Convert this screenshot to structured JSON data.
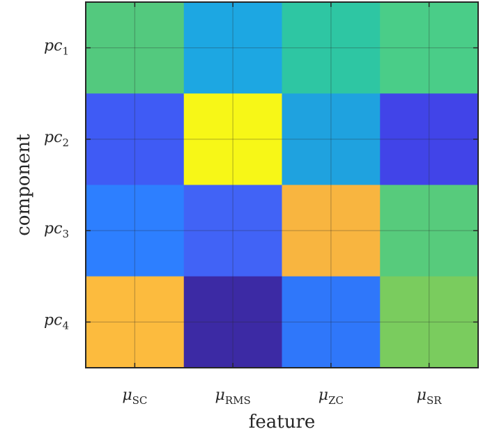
{
  "chart_data": {
    "type": "heatmap",
    "title": "",
    "xlabel": "feature",
    "ylabel": "component",
    "x_ticks": [
      {
        "base": "μ",
        "sub": "SC"
      },
      {
        "base": "μ",
        "sub": "RMS"
      },
      {
        "base": "μ",
        "sub": "ZC"
      },
      {
        "base": "μ",
        "sub": "SR"
      }
    ],
    "y_ticks": [
      {
        "base": "pc",
        "sub": "1"
      },
      {
        "base": "pc",
        "sub": "2"
      },
      {
        "base": "pc",
        "sub": "3"
      },
      {
        "base": "pc",
        "sub": "4"
      }
    ],
    "colormap": "parula",
    "grid": true,
    "colorbar": false,
    "cells": [
      [
        0.72,
        0.4,
        0.62,
        0.7
      ],
      [
        0.12,
        1.0,
        0.38,
        0.07
      ],
      [
        0.22,
        0.15,
        0.88,
        0.7
      ],
      [
        0.9,
        0.0,
        0.24,
        0.76
      ]
    ],
    "cell_colors": [
      [
        "#53C97E",
        "#1DA7E2",
        "#2EC6A3",
        "#4ACD88"
      ],
      [
        "#3F5BF5",
        "#F7F717",
        "#1FA2DF",
        "#4144E8"
      ],
      [
        "#2D7FFF",
        "#4163F6",
        "#F8B540",
        "#57CB7C"
      ],
      [
        "#FCBB3E",
        "#3C2AA4",
        "#2F77FA",
        "#7ACC5E"
      ]
    ]
  }
}
